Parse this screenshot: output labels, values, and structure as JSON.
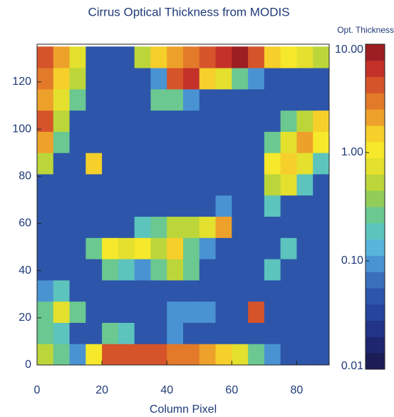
{
  "chart_data": {
    "type": "heatmap",
    "title": "Cirrus Optical Thickness from MODIS",
    "xlabel": "Column Pixel",
    "colorbar_label": "Opt. Thickness",
    "xlim": [
      0,
      90
    ],
    "xticks": [
      0,
      20,
      40,
      60,
      80
    ],
    "ylim": [
      0,
      136
    ],
    "yticks": [
      0,
      20,
      40,
      60,
      80,
      100,
      120
    ],
    "zlim": [
      0.01,
      10
    ],
    "log_scale": true,
    "zticks": [
      {
        "value": 0.01,
        "label": "0.01"
      },
      {
        "value": 0.1,
        "label": "0.10"
      },
      {
        "value": 1,
        "label": "1.00"
      },
      {
        "value": 10,
        "label": "10.00"
      }
    ],
    "colors": [
      "#1c1c56",
      "#1f2670",
      "#223488",
      "#26449c",
      "#2d55aa",
      "#3a70bb",
      "#4a93d2",
      "#57b5da",
      "#5cc4bd",
      "#6bc890",
      "#92cd5a",
      "#bcd63a",
      "#e3e02e",
      "#f6e82a",
      "#f6cf2b",
      "#eea12a",
      "#e27a2a",
      "#d6542a",
      "#c43128",
      "#9c1e22"
    ],
    "x": [
      2.5,
      7.5,
      12.5,
      17.5,
      22.5,
      27.5,
      32.5,
      37.5,
      42.5,
      47.5,
      52.5,
      57.5,
      62.5,
      67.5,
      72.5,
      77.5,
      82.5,
      87.5
    ],
    "y": [
      4.5,
      13.5,
      22.5,
      31.5,
      40.5,
      49.5,
      58.5,
      67.5,
      76.5,
      85.5,
      94.5,
      103.5,
      112.5,
      121.5,
      130.5
    ],
    "values": [
      [
        0.6,
        0.3,
        0.1,
        1,
        4,
        5,
        5,
        4,
        3,
        3,
        2,
        1.5,
        0.8,
        0.3,
        0.1,
        0.04,
        0.04,
        0.04
      ],
      [
        0.3,
        0.2,
        0.04,
        0.04,
        0.3,
        0.2,
        0.04,
        0.04,
        0.1,
        0.04,
        0.04,
        0.04,
        0.04,
        0.04,
        0.04,
        0.04,
        0.04,
        0.04
      ],
      [
        0.3,
        0.8,
        0.3,
        0.04,
        0.04,
        0.04,
        0.04,
        0.04,
        0.1,
        0.1,
        0.1,
        0.04,
        0.04,
        4,
        0.04,
        0.04,
        0.04,
        0.04
      ],
      [
        0.1,
        0.2,
        0.04,
        0.04,
        0.04,
        0.04,
        0.04,
        0.04,
        0.04,
        0.04,
        0.04,
        0.04,
        0.04,
        0.04,
        0.04,
        0.04,
        0.04,
        0.04
      ],
      [
        0.04,
        0.04,
        0.04,
        0.04,
        0.3,
        0.2,
        0.1,
        0.3,
        0.6,
        0.3,
        0.04,
        0.04,
        0.04,
        0.04,
        0.2,
        0.04,
        0.04,
        0.04
      ],
      [
        0.04,
        0.04,
        0.04,
        0.3,
        1,
        0.8,
        1,
        0.6,
        1.5,
        0.3,
        0.1,
        0.04,
        0.04,
        0.04,
        0.04,
        0.2,
        0.04,
        0.04
      ],
      [
        0.04,
        0.04,
        0.04,
        0.04,
        0.04,
        0.04,
        0.2,
        0.3,
        0.6,
        0.6,
        0.8,
        2,
        0.04,
        0.04,
        0.04,
        0.04,
        0.04,
        0.04
      ],
      [
        0.04,
        0.04,
        0.04,
        0.04,
        0.04,
        0.04,
        0.04,
        0.04,
        0.04,
        0.04,
        0.04,
        0.1,
        0.04,
        0.04,
        0.2,
        0.04,
        0.04,
        0.04
      ],
      [
        0.04,
        0.04,
        0.04,
        0.04,
        0.04,
        0.04,
        0.04,
        0.04,
        0.04,
        0.04,
        0.04,
        0.04,
        0.04,
        0.04,
        0.6,
        0.8,
        0.2,
        0.04
      ],
      [
        0.6,
        0.04,
        0.04,
        1.5,
        0.04,
        0.04,
        0.04,
        0.04,
        0.04,
        0.04,
        0.04,
        0.04,
        0.04,
        0.04,
        1,
        1.5,
        0.8,
        0.2
      ],
      [
        2,
        0.3,
        0.04,
        0.04,
        0.04,
        0.04,
        0.04,
        0.04,
        0.04,
        0.04,
        0.04,
        0.04,
        0.04,
        0.04,
        0.3,
        0.8,
        2,
        1
      ],
      [
        4,
        0.6,
        0.04,
        0.04,
        0.04,
        0.04,
        0.04,
        0.04,
        0.04,
        0.04,
        0.04,
        0.04,
        0.04,
        0.04,
        0.04,
        0.3,
        0.5,
        1.5
      ],
      [
        2,
        0.8,
        0.3,
        0.04,
        0.04,
        0.04,
        0.04,
        0.3,
        0.3,
        0.1,
        0.04,
        0.04,
        0.04,
        0.04,
        0.04,
        0.04,
        0.04,
        0.04
      ],
      [
        3,
        1.5,
        0.5,
        0.04,
        0.04,
        0.04,
        0.04,
        0.1,
        4,
        6,
        1.5,
        0.8,
        0.3,
        0.1,
        0.05,
        0.04,
        0.04,
        0.04
      ],
      [
        4,
        2,
        0.8,
        0.04,
        0.04,
        0.04,
        0.6,
        1.5,
        2,
        3,
        5,
        6,
        8,
        4,
        1.5,
        1,
        0.8,
        0.5
      ]
    ]
  }
}
